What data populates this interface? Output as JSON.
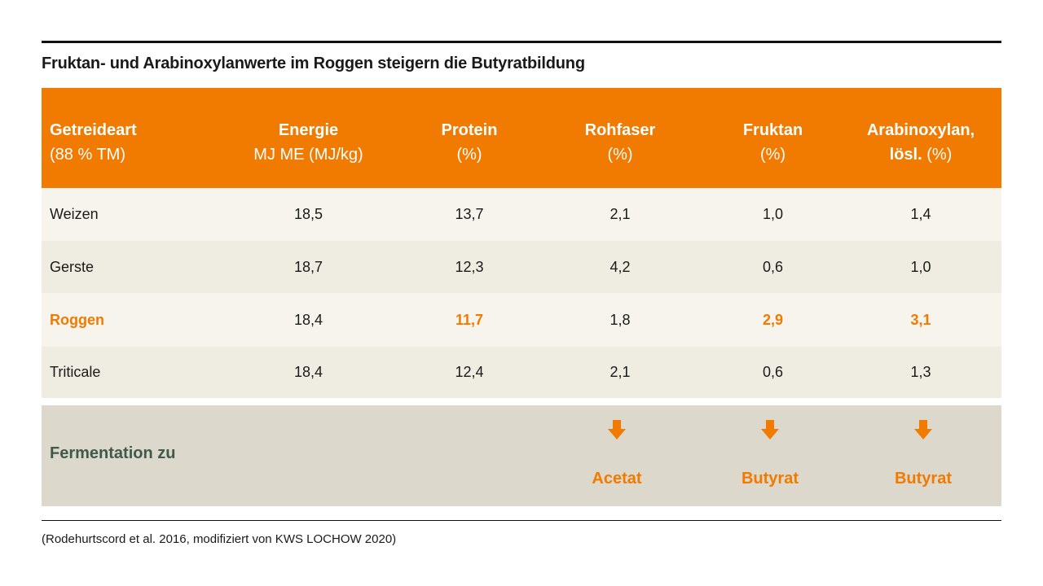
{
  "title": "Fruktan- und Arabinoxylanwerte im Roggen steigern die Butyratbildung",
  "header": [
    {
      "bold": "Getreideart",
      "normal": "(88 % TM)"
    },
    {
      "bold": "Energie",
      "normal": "MJ ME (MJ/kg)"
    },
    {
      "bold": "Protein",
      "normal": "(%)"
    },
    {
      "bold": "Rohfaser",
      "normal": "(%)"
    },
    {
      "bold": "Fruktan",
      "normal": "(%)"
    },
    {
      "bold": "Arabinoxylan,",
      "bold2": "lösl.",
      "normal": "(%)"
    }
  ],
  "rows": [
    {
      "name": "Weizen",
      "energie": "18,5",
      "protein": "13,7",
      "rohfaser": "2,1",
      "fruktan": "1,0",
      "arabinoxylan": "1,4"
    },
    {
      "name": "Gerste",
      "energie": "18,7",
      "protein": "12,3",
      "rohfaser": "4,2",
      "fruktan": "0,6",
      "arabinoxylan": "1,0"
    },
    {
      "name": "Roggen",
      "energie": "18,4",
      "protein": "11,7",
      "rohfaser": "1,8",
      "fruktan": "2,9",
      "arabinoxylan": "3,1"
    },
    {
      "name": "Triticale",
      "energie": "18,4",
      "protein": "12,4",
      "rohfaser": "2,1",
      "fruktan": "0,6",
      "arabinoxylan": "1,3"
    }
  ],
  "fermentation": {
    "label": "Fermentation zu",
    "rohfaser": "Acetat",
    "fruktan": "Butyrat",
    "arabinoxylan": "Butyrat",
    "arrow_icon": "down-arrow-icon"
  },
  "source": "(Rodehurtscord et al. 2016, modifiziert von KWS LOCHOW 2020)",
  "colors": {
    "accent": "#f17a00",
    "fermentation_label": "#3f5a4a",
    "fermentation_bg": "#dcd8cb"
  }
}
